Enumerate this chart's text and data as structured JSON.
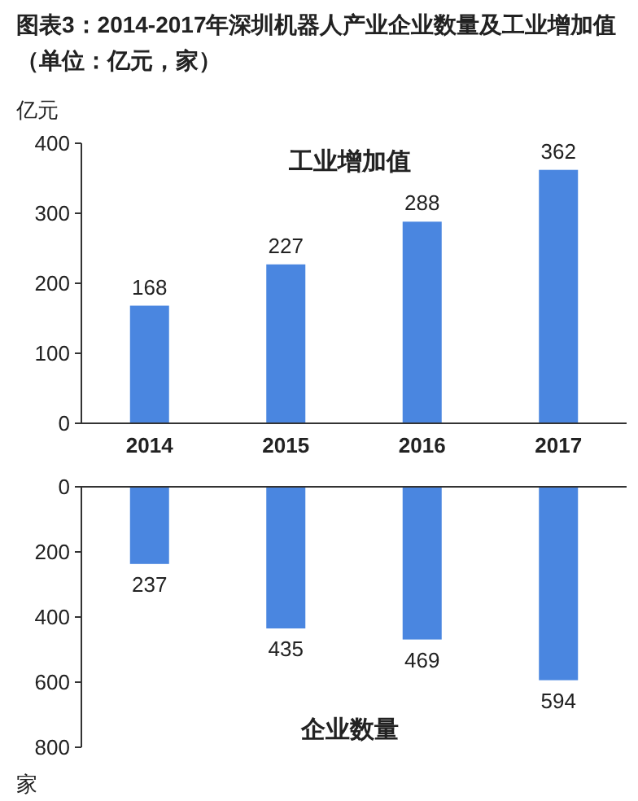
{
  "chart_data": [
    {
      "type": "bar",
      "title": "图表3：2014-2017年深圳机器人产业企业数量及工业增加值（单位：亿元，家）",
      "ylabel": "亿元",
      "annotations": [
        "工业增加值"
      ],
      "categories": [
        "2014",
        "2015",
        "2016",
        "2017"
      ],
      "series": [
        {
          "color": "#4a86e0",
          "values": [
            168,
            227,
            288,
            362
          ]
        }
      ],
      "ylim": [
        0,
        400
      ],
      "yticks": [
        0,
        100,
        200,
        300,
        400
      ],
      "data_labels": true,
      "grid": false
    },
    {
      "type": "bar",
      "ylabel": "家",
      "annotations": [
        "企业数量"
      ],
      "categories": [
        "2014",
        "2015",
        "2016",
        "2017"
      ],
      "series": [
        {
          "color": "#4a86e0",
          "values": [
            237,
            435,
            469,
            594
          ]
        }
      ],
      "ylim": [
        800,
        0
      ],
      "yticks": [
        0,
        200,
        400,
        600,
        800
      ],
      "data_labels": true,
      "tick_labels": "y",
      "grid": false
    }
  ]
}
